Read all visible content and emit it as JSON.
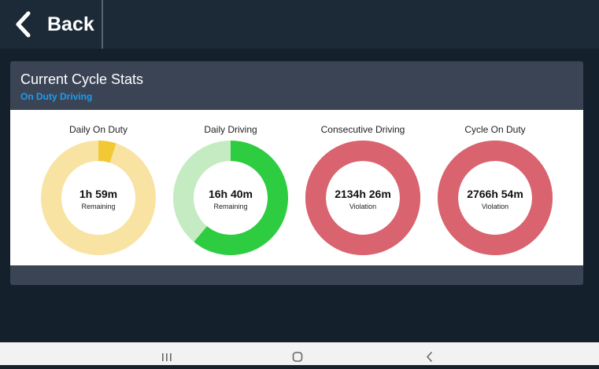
{
  "header": {
    "back_label": "Back"
  },
  "panel": {
    "title": "Current Cycle Stats",
    "subtitle": "On Duty Driving"
  },
  "gauges": [
    {
      "label": "Daily On Duty",
      "value": "1h 59m",
      "status": "Remaining",
      "used_fraction": 0.05,
      "track_color": "#f8e3a3",
      "fill_color": "#f2c935"
    },
    {
      "label": "Daily Driving",
      "value": "16h 40m",
      "status": "Remaining",
      "used_fraction": 0.61,
      "track_color": "#c5ebc2",
      "fill_color": "#2ecc40"
    },
    {
      "label": "Consecutive Driving",
      "value": "2134h 26m",
      "status": "Violation",
      "used_fraction": 1.0,
      "track_color": "#d9636f",
      "fill_color": "#d9636f"
    },
    {
      "label": "Cycle On Duty",
      "value": "2766h 54m",
      "status": "Violation",
      "used_fraction": 1.0,
      "track_color": "#d9636f",
      "fill_color": "#d9636f"
    }
  ],
  "colors": {
    "background": "#14212c",
    "topbar": "#1b2a36",
    "panel": "#3a4455",
    "accent": "#1e9bf0"
  },
  "navbar": {
    "icons": [
      "recent-apps-icon",
      "home-icon",
      "back-nav-icon"
    ]
  }
}
